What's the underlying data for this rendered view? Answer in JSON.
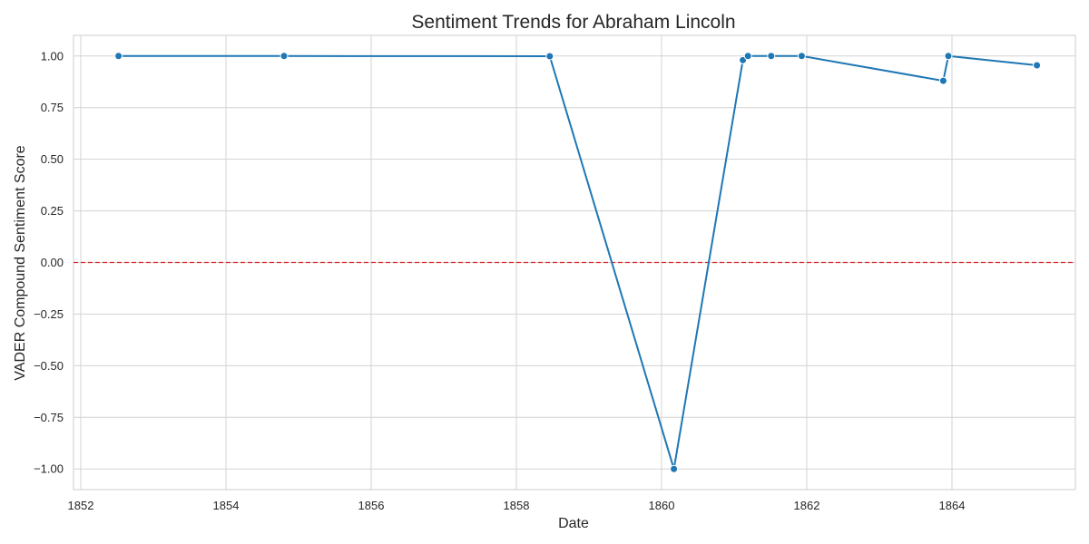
{
  "chart_data": {
    "type": "line",
    "title": "Sentiment Trends for Abraham Lincoln",
    "xlabel": "Date",
    "ylabel": "VADER Compound Sentiment Score",
    "x_ticks": [
      1852,
      1854,
      1856,
      1858,
      1860,
      1862,
      1864
    ],
    "x_tick_labels": [
      "1852",
      "1854",
      "1856",
      "1858",
      "1860",
      "1862",
      "1864"
    ],
    "y_ticks": [
      1.0,
      0.75,
      0.5,
      0.25,
      0.0,
      -0.25,
      -0.5,
      -0.75,
      -1.0
    ],
    "y_tick_labels": [
      "1.00",
      "0.75",
      "0.50",
      "0.25",
      "0.00",
      "−0.25",
      "−0.50",
      "−0.75",
      "−1.00"
    ],
    "xlim": [
      1851.9,
      1865.7
    ],
    "ylim": [
      -1.1,
      1.1
    ],
    "grid": true,
    "reference_line": {
      "y": 0.0,
      "color": "#d62728",
      "style": "dashed"
    },
    "series": [
      {
        "color": "#1f77b4",
        "x": [
          1852.52,
          1854.8,
          1858.46,
          1860.17,
          1861.12,
          1861.19,
          1861.51,
          1861.93,
          1863.88,
          1863.95,
          1865.17
        ],
        "y": [
          1.0,
          1.0,
          0.999,
          -1.0,
          0.98,
          1.0,
          1.0,
          1.0,
          0.88,
          1.0,
          0.955
        ]
      }
    ]
  }
}
